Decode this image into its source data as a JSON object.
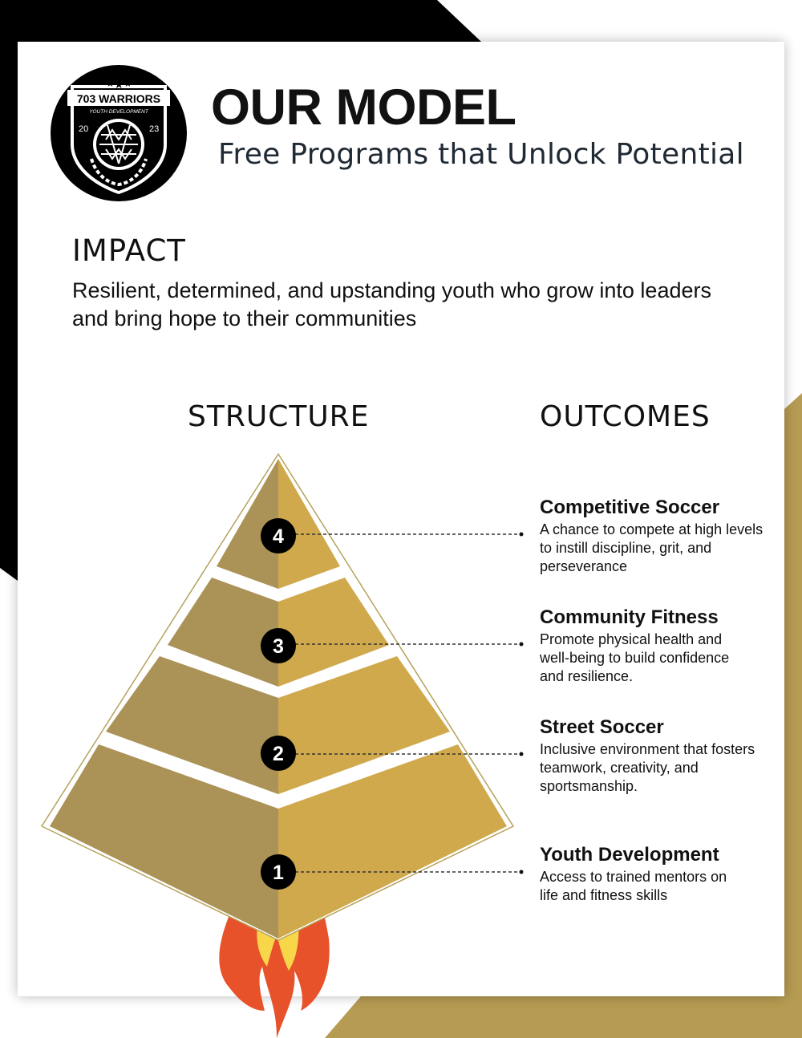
{
  "header": {
    "title": "OUR MODEL",
    "subtitle": "Free Programs that Unlock Potential"
  },
  "logo": {
    "name": "703 WARRIORS",
    "tagline": "YOUTH DEVELOPMENT",
    "year_left": "20",
    "year_right": "23"
  },
  "impact": {
    "heading": "IMPACT",
    "text": "Resilient, determined, and upstanding youth who grow into leaders and bring hope to their communities"
  },
  "structure": {
    "heading": "STRUCTURE",
    "levels": [
      "1",
      "2",
      "3",
      "4"
    ]
  },
  "outcomes": {
    "heading": "OUTCOMES",
    "items": [
      {
        "level": "4",
        "title": "Competitive Soccer",
        "description": "A chance to compete at high levels to instill discipline, grit, and perseverance"
      },
      {
        "level": "3",
        "title": "Community Fitness",
        "description": "Promote physical health and well-being to build confidence and resilience."
      },
      {
        "level": "2",
        "title": "Street Soccer",
        "description": "Inclusive environment that fosters teamwork, creativity, and sportsmanship."
      },
      {
        "level": "1",
        "title": "Youth Development",
        "description": "Access to trained mentors on life and fitness skills"
      }
    ]
  },
  "colors": {
    "gold_light": "#cfa94c",
    "gold_dark": "#ab9357",
    "background_gold": "#b69b52",
    "black": "#000000",
    "flame_red": "#e8522a",
    "flame_yellow": "#f7d64a"
  }
}
